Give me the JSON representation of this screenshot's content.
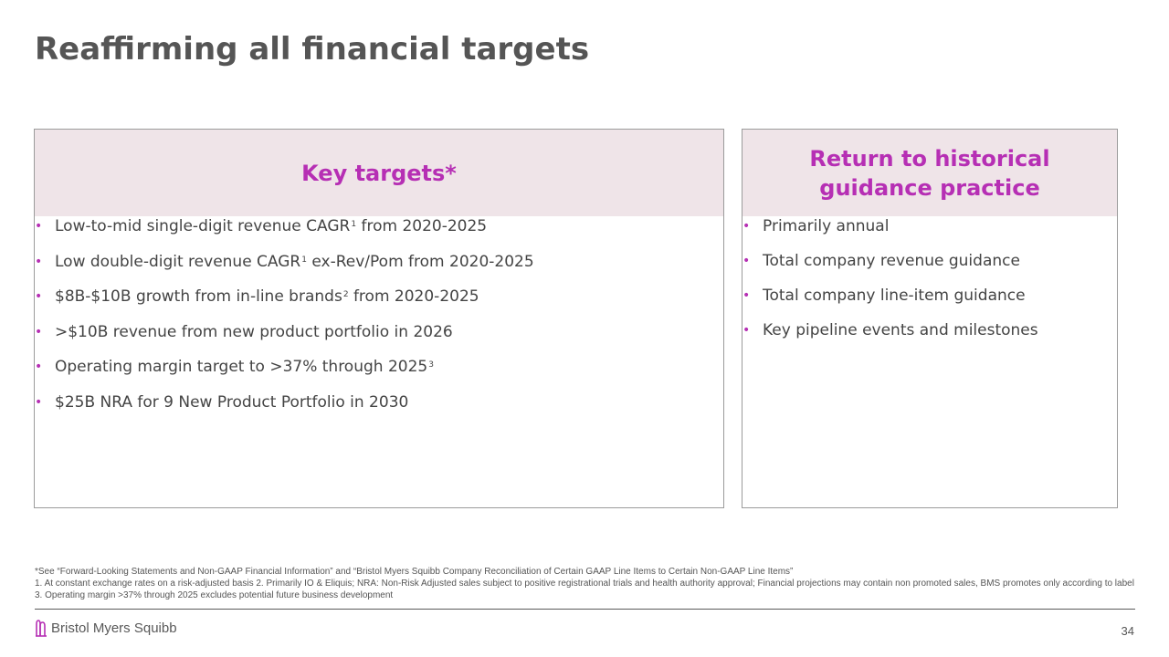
{
  "slide": {
    "title": "Reaffirming all financial targets",
    "page_number": "34"
  },
  "left_panel": {
    "heading": "Key targets*",
    "items": [
      {
        "text": "Low-to-mid single-digit revenue CAGR",
        "sup": "1",
        "text2": " from 2020-2025"
      },
      {
        "text": "Low double-digit revenue CAGR",
        "sup": "1",
        "text2": " ex-Rev/Pom from 2020-2025"
      },
      {
        "text": "$8B-$10B growth from in-line brands",
        "sup": "2",
        "text2": " from 2020-2025"
      },
      {
        "text": ">$10B revenue from new product portfolio in 2026",
        "sup": "",
        "text2": ""
      },
      {
        "text": "Operating margin target to >37% through 2025",
        "sup": "3",
        "text2": ""
      },
      {
        "text": "$25B NRA for 9 New Product Portfolio in 2030",
        "sup": "",
        "text2": ""
      }
    ]
  },
  "right_panel": {
    "heading": "Return to historical guidance practice",
    "items": [
      "Primarily annual",
      "Total company revenue guidance",
      "Total company line-item guidance",
      "Key pipeline events and milestones"
    ]
  },
  "bullet_glyph": "•",
  "footnotes": {
    "line1": "*See “Forward-Looking Statements and Non-GAAP Financial Information” and “Bristol Myers Squibb Company Reconciliation of Certain GAAP Line Items to Certain Non-GAAP Line Items”",
    "line2": "1. At constant exchange rates on a risk-adjusted basis 2. Primarily IO & Eliquis; NRA: Non-Risk Adjusted sales subject to positive registrational trials and health authority approval; Financial projections may contain non promoted sales, BMS promotes only according to label 3. Operating margin >37% through 2025 excludes potential future business development"
  },
  "footer": {
    "logo_text": "Bristol Myers Squibb",
    "logo_icon": "bms-logo-icon"
  },
  "colors": {
    "accent": "#b62fb4",
    "header_bg": "#efe4e8",
    "title": "#555555"
  }
}
